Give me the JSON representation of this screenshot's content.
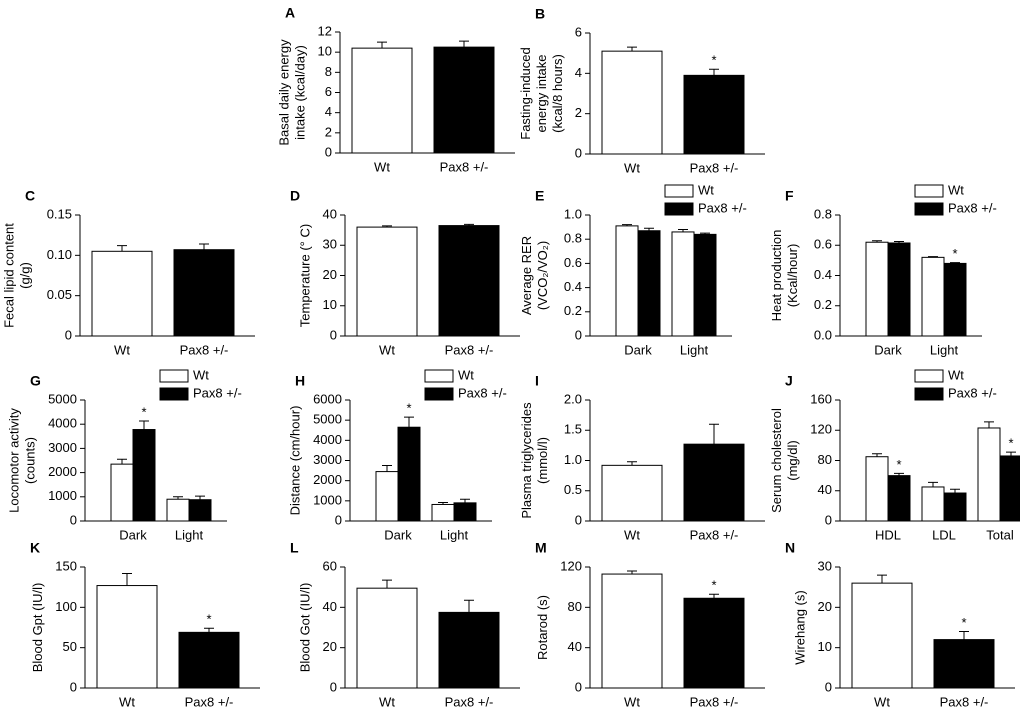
{
  "chart_data": [
    {
      "type": "bar",
      "label": "A",
      "ylabel": [
        "Basal daily energy",
        "intake (kcal/day)"
      ],
      "categories": [
        "Wt",
        "Pax8 +/-"
      ],
      "values": [
        10.4,
        10.5
      ],
      "errors": [
        0.6,
        0.6
      ],
      "significant": [
        false,
        false
      ],
      "colors": [
        "#ffffff",
        "#000000"
      ],
      "ylim": [
        0,
        12
      ],
      "yticks": [
        0,
        2,
        4,
        6,
        8,
        10,
        12
      ],
      "marker": "*"
    },
    {
      "type": "bar",
      "label": "B",
      "ylabel": [
        "Fasting-induced",
        "energy intake",
        "(kcal/8 hours)"
      ],
      "categories": [
        "Wt",
        "Pax8 +/-"
      ],
      "values": [
        5.1,
        3.9
      ],
      "errors": [
        0.2,
        0.3
      ],
      "significant": [
        false,
        true
      ],
      "colors": [
        "#ffffff",
        "#000000"
      ],
      "ylim": [
        0,
        6
      ],
      "yticks": [
        0,
        2,
        4,
        6
      ],
      "marker": "*"
    },
    {
      "type": "bar",
      "label": "C",
      "ylabel": [
        "Fecal lipid content",
        "(g/g)"
      ],
      "categories": [
        "Wt",
        "Pax8 +/-"
      ],
      "values": [
        0.105,
        0.107
      ],
      "errors": [
        0.007,
        0.007
      ],
      "significant": [
        false,
        false
      ],
      "colors": [
        "#ffffff",
        "#000000"
      ],
      "ylim": [
        0,
        0.15
      ],
      "yticks": [
        0,
        0.05,
        {
          "value": 0.1,
          "label": "0.10"
        },
        0.15
      ],
      "marker": "*"
    },
    {
      "type": "bar",
      "label": "D",
      "ylabel": [
        "Temperature (° C)"
      ],
      "categories": [
        "Wt",
        "Pax8 +/-"
      ],
      "values": [
        36,
        36.5
      ],
      "errors": [
        0.4,
        0.4
      ],
      "significant": [
        false,
        false
      ],
      "colors": [
        "#ffffff",
        "#000000"
      ],
      "ylim": [
        0,
        40
      ],
      "yticks": [
        0,
        10,
        20,
        30,
        40
      ],
      "marker": "*"
    },
    {
      "type": "bar",
      "label": "E",
      "ylabel": [
        "Average RER",
        "(VCO₂/VO₂)"
      ],
      "categories": [
        "Dark",
        "Light"
      ],
      "series": [
        {
          "name": "Wt",
          "color": "#ffffff",
          "values": [
            0.91,
            0.86
          ],
          "errors": [
            0.01,
            0.02
          ],
          "significant": [
            false,
            false
          ]
        },
        {
          "name": "Pax8 +/-",
          "color": "#000000",
          "values": [
            0.87,
            0.84
          ],
          "errors": [
            0.02,
            0.01
          ],
          "significant": [
            false,
            false
          ]
        }
      ],
      "ylim": [
        0,
        1
      ],
      "yticks": [
        0,
        0.2,
        0.4,
        0.6,
        0.8,
        {
          "value": 1,
          "label": "1.0"
        }
      ],
      "marker": "*"
    },
    {
      "type": "bar",
      "label": "F",
      "ylabel": [
        "Heat production",
        "(Kcal/hour)"
      ],
      "categories": [
        "Dark",
        "Light"
      ],
      "series": [
        {
          "name": "Wt",
          "color": "#ffffff",
          "values": [
            0.62,
            0.52
          ],
          "errors": [
            0.01,
            0.005
          ],
          "significant": [
            false,
            false
          ]
        },
        {
          "name": "Pax8 +/-",
          "color": "#000000",
          "values": [
            0.615,
            0.48
          ],
          "errors": [
            0.01,
            0.005
          ],
          "significant": [
            false,
            true
          ]
        }
      ],
      "ylim": [
        0,
        0.8
      ],
      "yticks": [
        {
          "value": 0,
          "label": "0.0"
        },
        0.2,
        0.4,
        0.6,
        0.8
      ],
      "marker": "*"
    },
    {
      "type": "bar",
      "label": "G",
      "ylabel": [
        "Locomotor activity",
        "(counts)"
      ],
      "categories": [
        "Dark",
        "Light"
      ],
      "series": [
        {
          "name": "Wt",
          "color": "#ffffff",
          "values": [
            2350,
            900
          ],
          "errors": [
            200,
            100
          ],
          "significant": [
            false,
            false
          ]
        },
        {
          "name": "Pax8 +/-",
          "color": "#000000",
          "values": [
            3780,
            880
          ],
          "errors": [
            350,
            150
          ],
          "significant": [
            true,
            false
          ]
        }
      ],
      "ylim": [
        0,
        5000
      ],
      "yticks": [
        0,
        1000,
        2000,
        3000,
        4000,
        5000
      ],
      "marker": "*"
    },
    {
      "type": "bar",
      "label": "H",
      "ylabel": [
        "Distance (cm/hour)"
      ],
      "categories": [
        "Dark",
        "Light"
      ],
      "series": [
        {
          "name": "Wt",
          "color": "#ffffff",
          "values": [
            2450,
            820
          ],
          "errors": [
            300,
            100
          ],
          "significant": [
            false,
            false
          ]
        },
        {
          "name": "Pax8 +/-",
          "color": "#000000",
          "values": [
            4650,
            900
          ],
          "errors": [
            500,
            180
          ],
          "significant": [
            true,
            false
          ]
        }
      ],
      "ylim": [
        0,
        6000
      ],
      "yticks": [
        0,
        1000,
        2000,
        3000,
        4000,
        5000,
        6000
      ],
      "marker": "*"
    },
    {
      "type": "bar",
      "label": "I",
      "ylabel": [
        "Plasma triglycerides",
        "(mmol/l)"
      ],
      "categories": [
        "Wt",
        "Pax8 +/-"
      ],
      "values": [
        0.92,
        1.27
      ],
      "errors": [
        0.06,
        0.33
      ],
      "significant": [
        false,
        false
      ],
      "colors": [
        "#ffffff",
        "#000000"
      ],
      "ylim": [
        0,
        2
      ],
      "yticks": [
        0,
        0.5,
        {
          "value": 1,
          "label": "1.0"
        },
        1.5,
        {
          "value": 2,
          "label": "2.0"
        }
      ],
      "marker": "*"
    },
    {
      "type": "bar",
      "label": "J",
      "ylabel": [
        "Serum cholesterol",
        "(mg/dl)"
      ],
      "categories": [
        "HDL",
        "LDL",
        "Total"
      ],
      "series": [
        {
          "name": "Wt",
          "color": "#ffffff",
          "values": [
            85,
            45,
            123
          ],
          "errors": [
            4,
            6,
            8
          ],
          "significant": [
            false,
            false,
            false
          ]
        },
        {
          "name": "Pax8 +/-",
          "color": "#000000",
          "values": [
            60,
            37,
            86
          ],
          "errors": [
            3,
            5,
            5
          ],
          "significant": [
            true,
            false,
            true
          ]
        }
      ],
      "ylim": [
        0,
        160
      ],
      "yticks": [
        0,
        40,
        80,
        120,
        160
      ],
      "marker": "*"
    },
    {
      "type": "bar",
      "label": "K",
      "ylabel": [
        "Blood Gpt (IU/l)"
      ],
      "categories": [
        "Wt",
        "Pax8 +/-"
      ],
      "values": [
        127,
        69
      ],
      "errors": [
        15,
        5
      ],
      "significant": [
        false,
        true
      ],
      "colors": [
        "#ffffff",
        "#000000"
      ],
      "ylim": [
        0,
        150
      ],
      "yticks": [
        0,
        50,
        100,
        150
      ],
      "marker": "*"
    },
    {
      "type": "bar",
      "label": "L",
      "ylabel": [
        "Blood Got (IU/l)"
      ],
      "categories": [
        "Wt",
        "Pax8 +/-"
      ],
      "values": [
        49.5,
        37.5
      ],
      "errors": [
        4,
        6
      ],
      "significant": [
        false,
        false
      ],
      "colors": [
        "#ffffff",
        "#000000"
      ],
      "ylim": [
        0,
        60
      ],
      "yticks": [
        0,
        20,
        40,
        60
      ],
      "marker": "*"
    },
    {
      "type": "bar",
      "label": "M",
      "ylabel": [
        "Rotarod (s)"
      ],
      "categories": [
        "Wt",
        "Pax8 +/-"
      ],
      "values": [
        113,
        89
      ],
      "errors": [
        3,
        4
      ],
      "significant": [
        false,
        true
      ],
      "colors": [
        "#ffffff",
        "#000000"
      ],
      "ylim": [
        0,
        120
      ],
      "yticks": [
        0,
        40,
        80,
        120
      ],
      "marker": "*"
    },
    {
      "type": "bar",
      "label": "N",
      "ylabel": [
        "Wirehang (s)"
      ],
      "categories": [
        "Wt",
        "Pax8 +/-"
      ],
      "values": [
        26,
        12
      ],
      "errors": [
        2,
        2
      ],
      "significant": [
        false,
        true
      ],
      "colors": [
        "#ffffff",
        "#000000"
      ],
      "ylim": [
        0,
        30
      ],
      "yticks": [
        0,
        10,
        20,
        30
      ],
      "marker": "*"
    }
  ]
}
